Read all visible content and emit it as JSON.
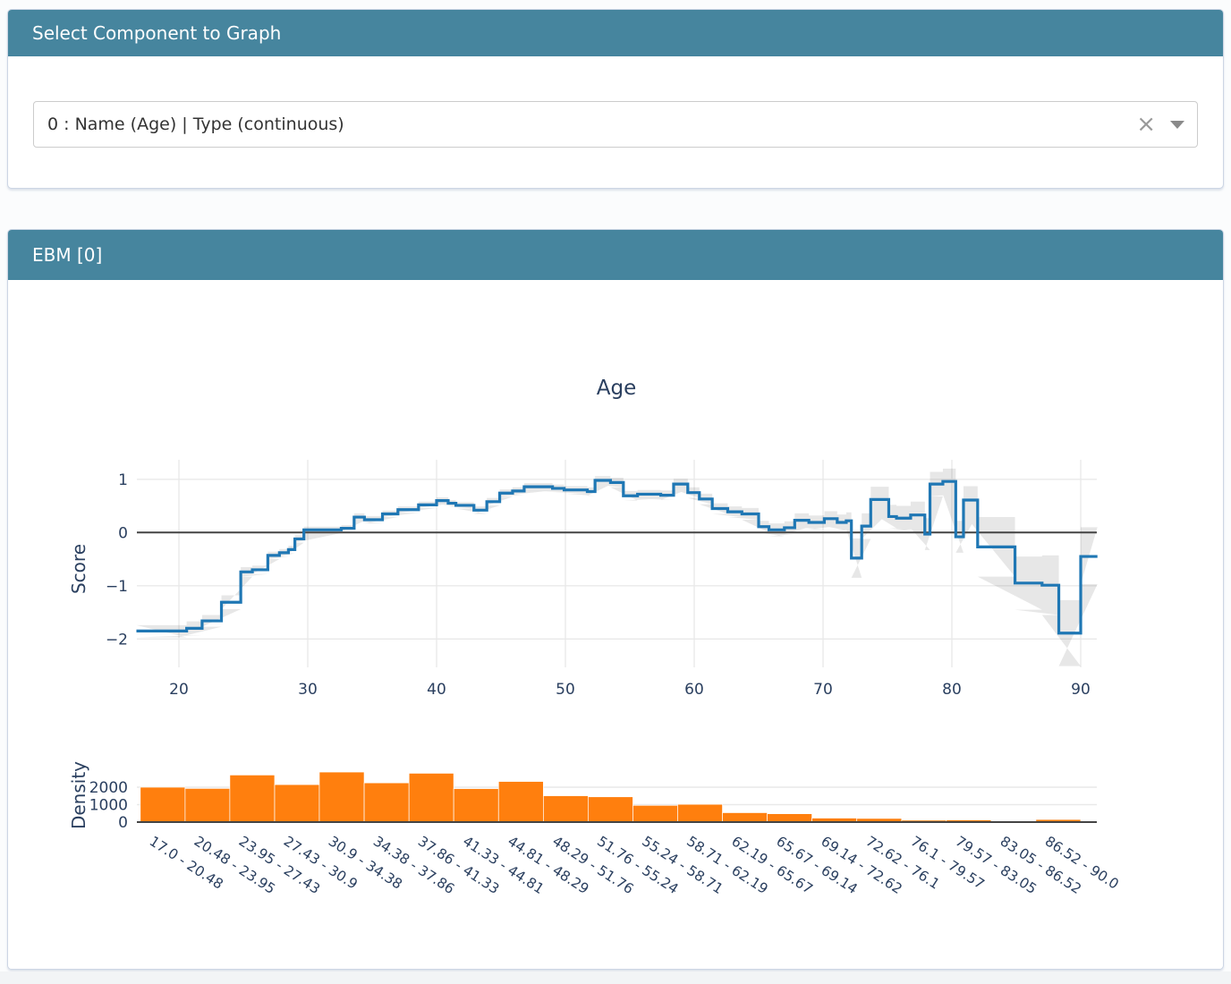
{
  "selector_card": {
    "title": "Select Component to Graph",
    "dropdown": {
      "value": "0 : Name (Age) | Type (continuous)",
      "clear_icon": "×",
      "caret_icon": "chevron-down"
    }
  },
  "ebm_card": {
    "title": "EBM [0]"
  },
  "colors": {
    "header_bg": "#46859e",
    "line": "#1f77b4",
    "band": "rgba(68,68,68,0.13)",
    "bar": "#ff7f0e",
    "axis_text": "#2a3f5f",
    "grid": "#e9e9e9",
    "zero_line": "#444444"
  },
  "chart_data": [
    {
      "type": "line",
      "subtype": "step-with-confidence-band",
      "title": "Age",
      "xlabel": "",
      "ylabel": "Score",
      "xlim": [
        16.7,
        91.3
      ],
      "ylim": [
        -2.54,
        1.36
      ],
      "x_ticks": [
        20,
        30,
        40,
        50,
        60,
        70,
        80,
        90
      ],
      "y_ticks": [
        {
          "v": 1,
          "label": "1"
        },
        {
          "v": 0,
          "label": "0"
        },
        {
          "v": -1,
          "label": "−1"
        },
        {
          "v": -2,
          "label": "−2"
        }
      ],
      "grid": true,
      "zeroline": true,
      "x_end": 91.3,
      "series": [
        {
          "name": "EBM score",
          "points": [
            [
              16.7,
              -1.85,
              -1.97,
              -1.74
            ],
            [
              20.6,
              -1.8,
              -1.93,
              -1.67
            ],
            [
              21.8,
              -1.66,
              -1.77,
              -1.55
            ],
            [
              23.3,
              -1.31,
              -1.44,
              -1.18
            ],
            [
              24.8,
              -0.74,
              -0.83,
              -0.65
            ],
            [
              25.7,
              -0.7,
              -0.78,
              -0.62
            ],
            [
              26.9,
              -0.43,
              -0.5,
              -0.36
            ],
            [
              27.8,
              -0.38,
              -0.45,
              -0.31
            ],
            [
              28.5,
              -0.32,
              -0.39,
              -0.25
            ],
            [
              29.0,
              -0.12,
              -0.19,
              -0.05
            ],
            [
              29.7,
              0.05,
              -0.01,
              0.11
            ],
            [
              32.6,
              0.08,
              0.02,
              0.14
            ],
            [
              33.6,
              0.29,
              0.22,
              0.36
            ],
            [
              34.4,
              0.24,
              0.17,
              0.31
            ],
            [
              35.8,
              0.35,
              0.29,
              0.41
            ],
            [
              37.0,
              0.43,
              0.37,
              0.49
            ],
            [
              38.6,
              0.52,
              0.46,
              0.58
            ],
            [
              40.0,
              0.6,
              0.54,
              0.66
            ],
            [
              40.9,
              0.55,
              0.49,
              0.61
            ],
            [
              41.5,
              0.51,
              0.45,
              0.57
            ],
            [
              42.9,
              0.42,
              0.35,
              0.49
            ],
            [
              43.9,
              0.58,
              0.51,
              0.65
            ],
            [
              44.9,
              0.74,
              0.67,
              0.81
            ],
            [
              45.9,
              0.78,
              0.71,
              0.85
            ],
            [
              46.8,
              0.86,
              0.79,
              0.93
            ],
            [
              49.0,
              0.83,
              0.76,
              0.9
            ],
            [
              49.9,
              0.8,
              0.73,
              0.87
            ],
            [
              51.7,
              0.77,
              0.69,
              0.85
            ],
            [
              52.3,
              0.98,
              0.9,
              1.06
            ],
            [
              53.5,
              0.94,
              0.85,
              1.03
            ],
            [
              54.5,
              0.69,
              0.6,
              0.78
            ],
            [
              55.6,
              0.72,
              0.64,
              0.8
            ],
            [
              57.4,
              0.7,
              0.61,
              0.79
            ],
            [
              58.4,
              0.91,
              0.81,
              1.01
            ],
            [
              59.5,
              0.75,
              0.65,
              0.85
            ],
            [
              60.4,
              0.63,
              0.53,
              0.73
            ],
            [
              61.4,
              0.45,
              0.35,
              0.55
            ],
            [
              62.6,
              0.39,
              0.29,
              0.49
            ],
            [
              63.7,
              0.35,
              0.24,
              0.46
            ],
            [
              65.0,
              0.11,
              0.0,
              0.22
            ],
            [
              65.8,
              0.05,
              -0.07,
              0.17
            ],
            [
              67.0,
              0.09,
              -0.03,
              0.21
            ],
            [
              67.8,
              0.23,
              0.1,
              0.36
            ],
            [
              68.9,
              0.19,
              0.06,
              0.32
            ],
            [
              70.1,
              0.26,
              0.12,
              0.4
            ],
            [
              71.1,
              0.19,
              0.04,
              0.34
            ],
            [
              71.8,
              0.22,
              0.06,
              0.38
            ],
            [
              72.2,
              -0.48,
              -0.85,
              -0.11
            ],
            [
              73.0,
              0.12,
              -0.12,
              0.36
            ],
            [
              73.7,
              0.62,
              0.38,
              0.86
            ],
            [
              75.1,
              0.3,
              0.08,
              0.52
            ],
            [
              75.7,
              0.27,
              0.04,
              0.5
            ],
            [
              76.8,
              0.33,
              0.08,
              0.58
            ],
            [
              77.9,
              -0.03,
              -0.33,
              0.27
            ],
            [
              78.3,
              0.91,
              0.68,
              1.14
            ],
            [
              79.3,
              0.96,
              0.72,
              1.2
            ],
            [
              80.3,
              -0.08,
              -0.38,
              0.22
            ],
            [
              80.9,
              0.61,
              0.35,
              0.87
            ],
            [
              82.0,
              -0.27,
              -0.83,
              0.29
            ],
            [
              84.9,
              -0.95,
              -1.45,
              -0.45
            ],
            [
              87.0,
              -0.99,
              -1.55,
              -0.43
            ],
            [
              88.3,
              -1.89,
              -2.51,
              -1.27
            ],
            [
              90.0,
              -0.45,
              -0.97,
              0.1
            ]
          ]
        }
      ]
    },
    {
      "type": "bar",
      "subtype": "histogram",
      "title": "",
      "xlabel": "",
      "ylabel": "Density",
      "ylim": [
        0,
        3000
      ],
      "y_ticks": [
        {
          "v": 2000,
          "label": "2000"
        },
        {
          "v": 1000,
          "label": "1000"
        },
        {
          "v": 0,
          "label": "0"
        }
      ],
      "grid": true,
      "tick_angle": 33,
      "bin_edges": [
        17.0,
        20.48,
        23.95,
        27.43,
        30.9,
        34.38,
        37.86,
        41.33,
        44.81,
        48.29,
        51.76,
        55.24,
        58.71,
        62.19,
        65.67,
        69.14,
        72.62,
        76.1,
        79.57,
        83.05,
        86.52,
        90.0
      ],
      "categories": [
        "17.0 - 20.48",
        "20.48 - 23.95",
        "23.95 - 27.43",
        "27.43 - 30.9",
        "30.9 - 34.38",
        "34.38 - 37.86",
        "37.86 - 41.33",
        "41.33 - 44.81",
        "44.81 - 48.29",
        "48.29 - 51.76",
        "51.76 - 55.24",
        "55.24 - 58.71",
        "58.71 - 62.19",
        "62.19 - 65.67",
        "65.67 - 69.14",
        "69.14 - 72.62",
        "72.62 - 76.1",
        "76.1 - 79.57",
        "79.57 - 83.05",
        "83.05 - 86.52",
        "86.52 - 90.0"
      ],
      "values": [
        2000,
        1930,
        2700,
        2150,
        2870,
        2250,
        2800,
        1920,
        2330,
        1510,
        1450,
        960,
        1020,
        540,
        480,
        230,
        210,
        110,
        125,
        60,
        150
      ]
    }
  ]
}
